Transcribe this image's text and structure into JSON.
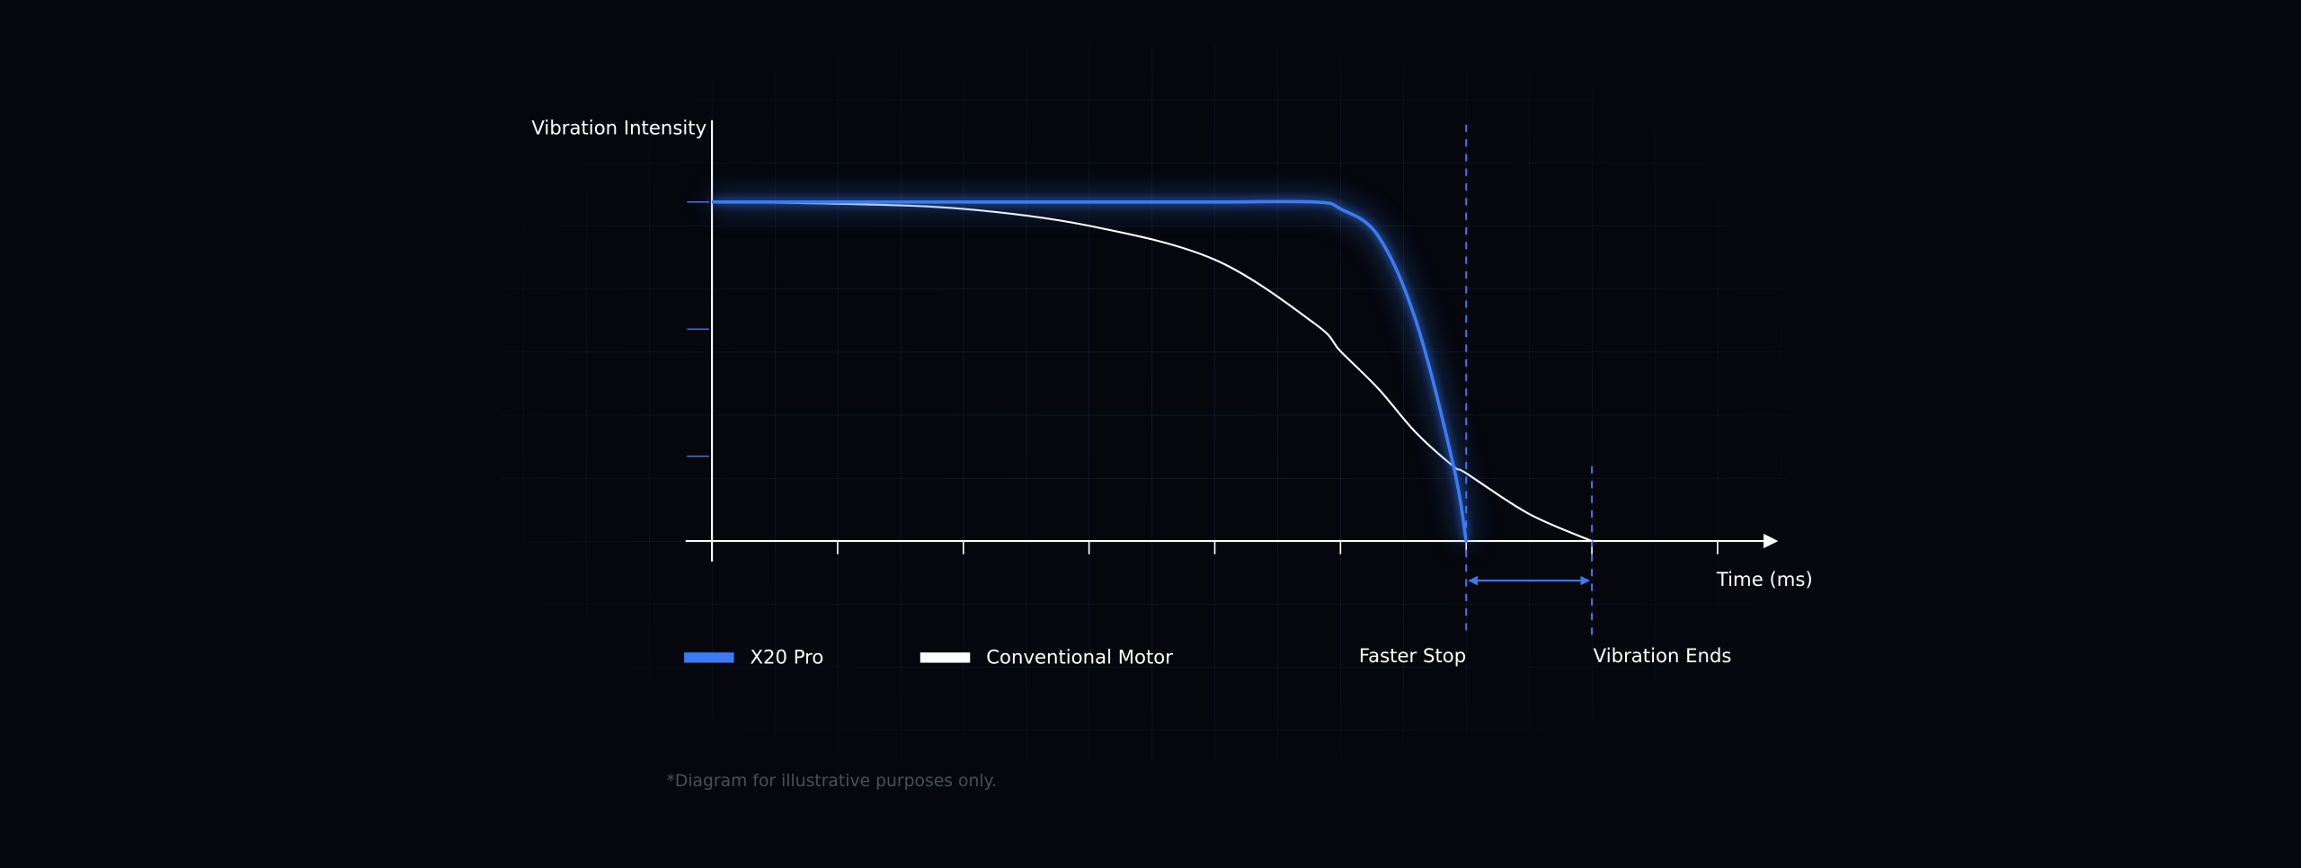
{
  "chart_data": {
    "type": "line",
    "y_label": "Vibration Intensity",
    "x_label": "Time (ms)",
    "x": [
      0,
      1,
      2,
      3,
      4,
      4.8,
      5,
      5.3,
      5.6,
      5.9,
      6,
      6.5,
      7
    ],
    "series": [
      {
        "name": "X20 Pro",
        "color": "#3b7bf5",
        "values": [
          100,
          100,
          100,
          100,
          100,
          100,
          98,
          90,
          65,
          22,
          0,
          null,
          null
        ]
      },
      {
        "name": "Conventional Motor",
        "color": "#ffffff",
        "values": [
          100,
          99.5,
          98,
          93,
          83,
          64,
          56,
          45,
          32,
          22,
          20,
          8,
          0
        ]
      }
    ],
    "xlim": [
      0,
      8.5
    ],
    "xticks": [
      0,
      1,
      2,
      3,
      4,
      5,
      6,
      7,
      8
    ],
    "ylim": [
      0,
      125
    ],
    "yticks": [
      25,
      62.5,
      100
    ],
    "annotations": [
      {
        "text": "Faster Stop",
        "x": 6
      },
      {
        "text": "Vibration Ends",
        "x": 7
      }
    ],
    "footnote": "*Diagram for illustrative purposes only."
  }
}
